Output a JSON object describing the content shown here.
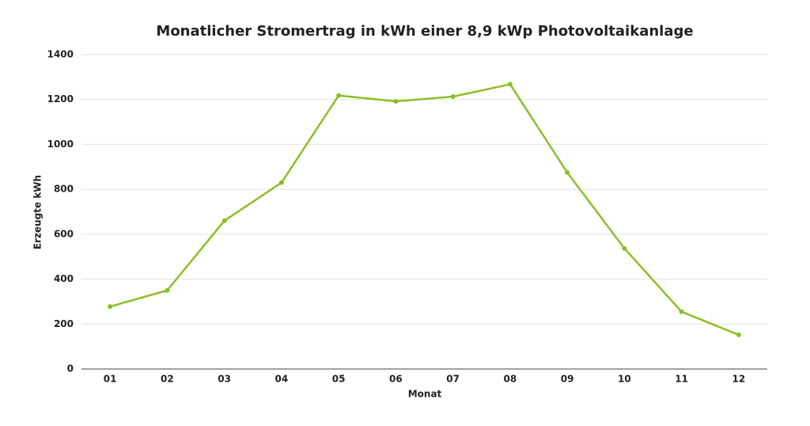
{
  "chart_data": {
    "type": "line",
    "title": "Monatlicher Stromertrag in kWh einer 8,9 kWp Photovoltaikanlage",
    "x_label": "Monat",
    "y_label": "Erzeugte kWh",
    "categories": [
      "01",
      "02",
      "03",
      "04",
      "05",
      "06",
      "07",
      "08",
      "09",
      "10",
      "11",
      "12"
    ],
    "values": [
      278,
      350,
      660,
      830,
      1218,
      1192,
      1213,
      1268,
      875,
      537,
      255,
      152
    ],
    "color": "#8cbf26",
    "ylim": [
      0,
      1400
    ],
    "yticks": [
      0,
      200,
      400,
      600,
      800,
      1000,
      1200,
      1400
    ],
    "grid": true
  }
}
